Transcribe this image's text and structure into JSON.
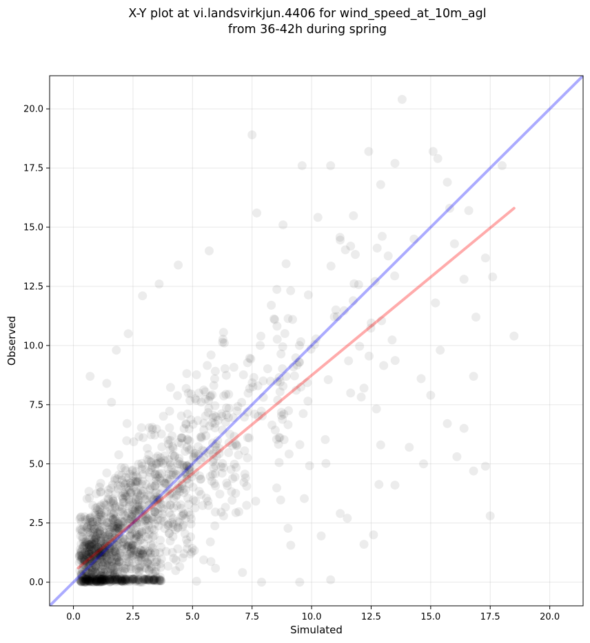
{
  "chart_data": {
    "type": "scatter",
    "title_line1": "X-Y plot at vi.landsvirkjun.4406 for wind_speed_at_10m_agl",
    "title_line2": "from 36-42h during spring",
    "xlabel": "Simulated",
    "ylabel": "Observed",
    "xlim": [
      -1.0,
      21.4
    ],
    "ylim": [
      -1.0,
      21.4
    ],
    "xticks": [
      "0.0",
      "2.5",
      "5.0",
      "7.5",
      "10.0",
      "12.5",
      "15.0",
      "17.5",
      "20.0"
    ],
    "yticks": [
      "0.0",
      "2.5",
      "5.0",
      "7.5",
      "10.0",
      "12.5",
      "15.0",
      "17.5",
      "20.0"
    ],
    "grid": true,
    "point_color": "#000000",
    "identity_line": {
      "color": "#0000ff",
      "from": [
        -1.0,
        -1.0
      ],
      "to": [
        21.4,
        21.4
      ]
    },
    "fit_line": {
      "color": "#ff0000",
      "from": [
        0.2,
        0.6
      ],
      "to": [
        18.5,
        15.8
      ]
    },
    "outlier_points": [
      {
        "x": 13.8,
        "y": 20.4
      },
      {
        "x": 7.5,
        "y": 18.9
      },
      {
        "x": 12.4,
        "y": 18.2
      },
      {
        "x": 15.1,
        "y": 18.2
      },
      {
        "x": 18.0,
        "y": 17.6
      },
      {
        "x": 15.3,
        "y": 17.9
      },
      {
        "x": 9.6,
        "y": 17.6
      },
      {
        "x": 10.8,
        "y": 17.6
      },
      {
        "x": 13.5,
        "y": 17.7
      },
      {
        "x": 15.7,
        "y": 16.9
      },
      {
        "x": 12.9,
        "y": 16.8
      },
      {
        "x": 17.6,
        "y": 12.9
      },
      {
        "x": 18.5,
        "y": 10.4
      },
      {
        "x": 17.3,
        "y": 13.7
      },
      {
        "x": 16.9,
        "y": 11.2
      },
      {
        "x": 16.8,
        "y": 8.7
      },
      {
        "x": 16.4,
        "y": 6.5
      },
      {
        "x": 16.1,
        "y": 5.3
      },
      {
        "x": 16.8,
        "y": 4.7
      },
      {
        "x": 17.3,
        "y": 4.9
      },
      {
        "x": 17.5,
        "y": 2.8
      },
      {
        "x": 16.4,
        "y": 12.8
      },
      {
        "x": 16.0,
        "y": 14.3
      },
      {
        "x": 16.6,
        "y": 15.7
      },
      {
        "x": 15.8,
        "y": 15.8
      },
      {
        "x": 15.7,
        "y": 6.7
      },
      {
        "x": 15.4,
        "y": 9.8
      },
      {
        "x": 14.7,
        "y": 5.0
      },
      {
        "x": 14.1,
        "y": 5.7
      },
      {
        "x": 12.2,
        "y": 1.6
      },
      {
        "x": 12.6,
        "y": 2.0
      },
      {
        "x": 10.8,
        "y": 0.1
      },
      {
        "x": 9.5,
        "y": 0.0
      },
      {
        "x": 7.9,
        "y": 0.0
      },
      {
        "x": 4.4,
        "y": 13.4
      },
      {
        "x": 5.7,
        "y": 14.0
      },
      {
        "x": 7.7,
        "y": 15.6
      },
      {
        "x": 8.8,
        "y": 15.1
      },
      {
        "x": 3.6,
        "y": 12.6
      },
      {
        "x": 2.9,
        "y": 12.1
      },
      {
        "x": 2.3,
        "y": 10.5
      },
      {
        "x": 1.8,
        "y": 9.8
      },
      {
        "x": 0.7,
        "y": 8.7
      },
      {
        "x": 1.4,
        "y": 8.4
      },
      {
        "x": 1.6,
        "y": 7.6
      },
      {
        "x": 13.5,
        "y": 4.1
      },
      {
        "x": 12.9,
        "y": 5.8
      },
      {
        "x": 14.6,
        "y": 8.6
      },
      {
        "x": 15.0,
        "y": 7.9
      },
      {
        "x": 15.2,
        "y": 11.8
      },
      {
        "x": 14.3,
        "y": 14.5
      },
      {
        "x": 11.5,
        "y": 2.7
      },
      {
        "x": 11.2,
        "y": 2.9
      },
      {
        "x": 12.2,
        "y": 8.2
      }
    ],
    "generated_cloud": {
      "count": 1350,
      "seed": 4406,
      "x_range": [
        0.2,
        15.5
      ],
      "y_range": [
        0.0,
        17.5
      ],
      "slope": 0.83,
      "intercept": 0.5
    }
  }
}
